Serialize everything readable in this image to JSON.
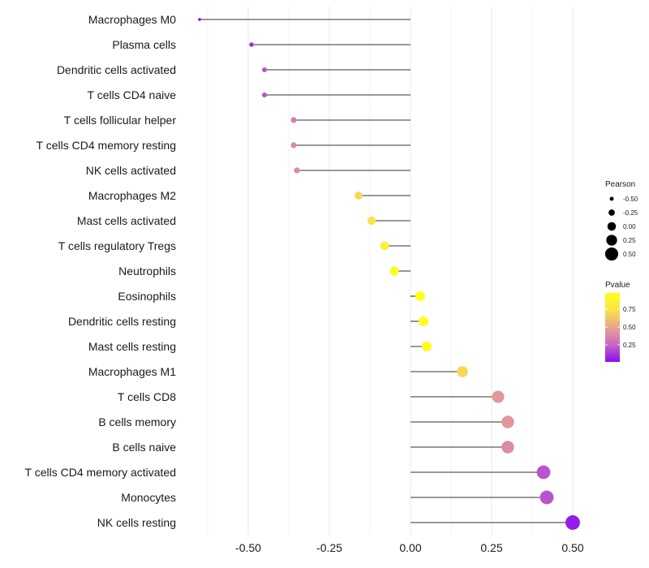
{
  "chart_data": {
    "type": "lollipop",
    "title": "",
    "xlabel": "",
    "ylabel": "",
    "xlim": [
      -0.7,
      0.52
    ],
    "x_ticks": [
      -0.5,
      -0.25,
      0.0,
      0.25,
      0.5
    ],
    "x_tick_labels": [
      "-0.50",
      "-0.25",
      "0.00",
      "0.25",
      "0.50"
    ],
    "grid": true,
    "categories": [
      "Macrophages M0",
      "Plasma cells",
      "Dendritic cells activated",
      "T cells CD4 naive",
      "T cells follicular helper",
      "T cells CD4 memory resting",
      "NK cells activated",
      "Macrophages M2",
      "Mast cells activated",
      "T cells regulatory  Tregs ",
      "Neutrophils",
      "Eosinophils",
      "Dendritic cells resting",
      "Mast cells resting",
      "Macrophages M1",
      "T cells CD8",
      "B cells memory",
      "B cells naive",
      "T cells CD4 memory activated",
      "Monocytes",
      "NK cells resting"
    ],
    "pearson": [
      -0.65,
      -0.49,
      -0.45,
      -0.45,
      -0.36,
      -0.36,
      -0.35,
      -0.16,
      -0.12,
      -0.08,
      -0.05,
      0.03,
      0.04,
      0.05,
      0.16,
      0.27,
      0.3,
      0.3,
      0.41,
      0.42,
      0.5
    ],
    "pvalue": [
      0.01,
      0.1,
      0.2,
      0.2,
      0.35,
      0.4,
      0.4,
      0.7,
      0.75,
      0.85,
      0.95,
      0.98,
      0.96,
      0.95,
      0.7,
      0.45,
      0.45,
      0.4,
      0.2,
      0.2,
      0.05
    ],
    "size_legend": {
      "title": "Pearson",
      "values": [
        -0.5,
        -0.25,
        0.0,
        0.25,
        0.5
      ],
      "labels": [
        "-0.50",
        "-0.25",
        "0.00",
        "0.25",
        "0.50"
      ]
    },
    "color_legend": {
      "title": "Pvalue",
      "range": [
        0.01,
        0.98
      ],
      "ticks": [
        0.25,
        0.5,
        0.75
      ],
      "tick_labels": [
        "0.25",
        "0.50",
        "0.75"
      ],
      "colors": [
        "#8b0ef0",
        "#c766c4",
        "#e8a48e",
        "#f8e34a",
        "#ffff1a"
      ]
    },
    "line_color": "#333333",
    "grid_color": "#ebebeb"
  }
}
